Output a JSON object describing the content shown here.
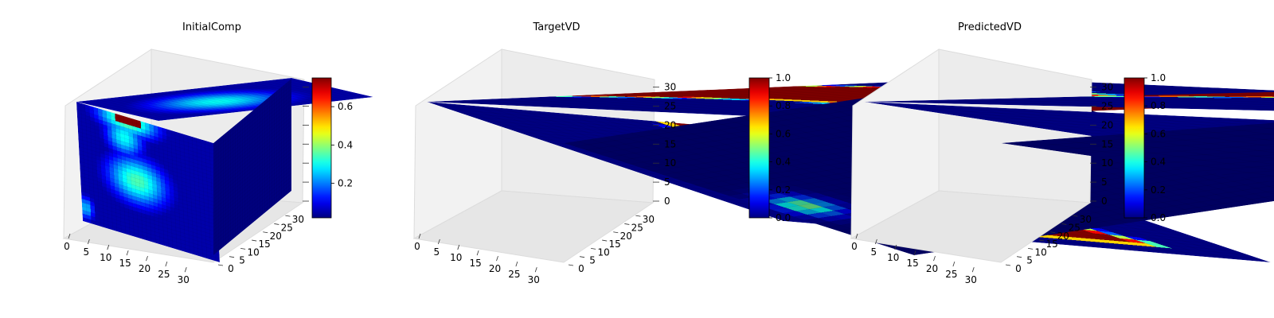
{
  "chart_data": [
    {
      "type": "heatmap",
      "subtype": "3d-voxel-cube",
      "title": "InitialComp",
      "colormap": "jet",
      "x_ticks": [
        0,
        5,
        10,
        15,
        20,
        25,
        30
      ],
      "y_ticks": [
        0,
        5,
        10,
        15,
        20,
        25,
        30
      ],
      "z_ticks": [],
      "xlim": [
        0,
        32
      ],
      "ylim": [
        0,
        32
      ],
      "zlim": [
        0,
        32
      ],
      "colorbar": {
        "range": [
          0.02,
          0.75
        ],
        "ticks": [
          0.2,
          0.4,
          0.6
        ],
        "tick_labels": [
          "0.2",
          "0.4",
          "0.6"
        ]
      },
      "background_value": 0.05,
      "features": [
        {
          "face": "front",
          "shape": "blob",
          "u": 0.42,
          "v": 0.52,
          "ru": 0.22,
          "rv": 0.2,
          "value": 0.35
        },
        {
          "face": "front",
          "shape": "blob",
          "u": 0.34,
          "v": 0.18,
          "ru": 0.14,
          "rv": 0.16,
          "value": 0.3
        },
        {
          "face": "front",
          "shape": "blob",
          "u": 0.03,
          "v": 0.88,
          "ru": 0.06,
          "rv": 0.1,
          "value": 0.25
        },
        {
          "face": "top",
          "shape": "blob",
          "u": 0.45,
          "v": 0.55,
          "ru": 0.3,
          "rv": 0.35,
          "value": 0.3
        },
        {
          "face": "front",
          "shape": "bar",
          "u": 0.37,
          "v": 0.03,
          "ru": 0.1,
          "rv": 0.03,
          "value": 0.75
        }
      ],
      "grid": true
    },
    {
      "type": "heatmap",
      "subtype": "3d-voxel-cube",
      "title": "TargetVD",
      "colormap": "jet",
      "x_ticks": [
        0,
        5,
        10,
        15,
        20,
        25,
        30
      ],
      "y_ticks": [
        0,
        5,
        10,
        15,
        20,
        25,
        30
      ],
      "z_ticks": [
        0,
        5,
        10,
        15,
        20,
        25,
        30
      ],
      "xlim": [
        0,
        32
      ],
      "ylim": [
        0,
        32
      ],
      "zlim": [
        0,
        32
      ],
      "colorbar": {
        "range": [
          0.0,
          1.0
        ],
        "ticks": [
          0.0,
          0.2,
          0.4,
          0.6,
          0.8,
          1.0
        ],
        "tick_labels": [
          "0.0",
          "0.2",
          "0.4",
          "0.6",
          "0.8",
          "1.0"
        ]
      },
      "background_value": 0.0,
      "features": [
        {
          "face": "front",
          "shape": "channel",
          "value": 1.0
        },
        {
          "face": "top",
          "shape": "channel",
          "value": 1.0
        },
        {
          "face": "right",
          "shape": "blob",
          "u": 0.07,
          "v": 0.6,
          "ru": 0.05,
          "rv": 0.08,
          "value": 0.5
        }
      ],
      "grid": true
    },
    {
      "type": "heatmap",
      "subtype": "3d-voxel-cube",
      "title": "PredictedVD",
      "colormap": "jet",
      "x_ticks": [
        0,
        5,
        10,
        15,
        20,
        25,
        30
      ],
      "y_ticks": [
        0,
        5,
        10,
        15,
        20,
        25,
        30
      ],
      "z_ticks": [
        0,
        5,
        10,
        15,
        20,
        25,
        30
      ],
      "xlim": [
        0,
        32
      ],
      "ylim": [
        0,
        32
      ],
      "zlim": [
        0,
        32
      ],
      "colorbar": {
        "range": [
          0.0,
          1.0
        ],
        "ticks": [
          0.0,
          0.2,
          0.4,
          0.6,
          0.8,
          1.0
        ],
        "tick_labels": [
          "0.0",
          "0.2",
          "0.4",
          "0.6",
          "0.8",
          "1.0"
        ]
      },
      "background_value": 0.0,
      "features": [
        {
          "face": "front",
          "shape": "channel",
          "value": 1.0
        },
        {
          "face": "top",
          "shape": "channel",
          "value": 1.0
        }
      ],
      "grid": true
    }
  ]
}
